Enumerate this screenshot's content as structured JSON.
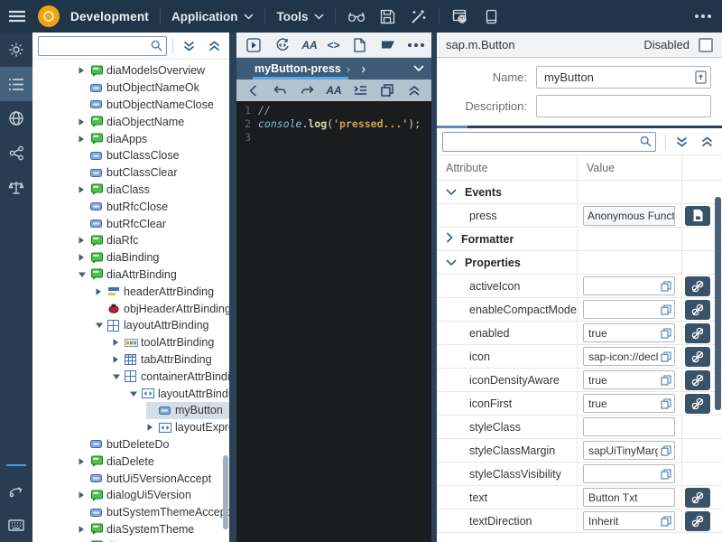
{
  "topbar": {
    "product_label": "Development",
    "menus": [
      {
        "label": "Application"
      },
      {
        "label": "Tools"
      }
    ]
  },
  "sidebar": {
    "items": [
      "settings",
      "objects-list",
      "globe",
      "share",
      "rules"
    ],
    "active_item": "objects-list",
    "bottom_items": [
      "gesture",
      "keyboard"
    ]
  },
  "tree": {
    "search_value": "",
    "items": [
      {
        "label": "diaModelsOverview",
        "level": 0,
        "expander": "closed",
        "icon": "dialog"
      },
      {
        "label": "butObjectNameOk",
        "level": 0,
        "expander": null,
        "icon": "button"
      },
      {
        "label": "butObjectNameClose",
        "level": 0,
        "expander": null,
        "icon": "button"
      },
      {
        "label": "diaObjectName",
        "level": 0,
        "expander": "closed",
        "icon": "dialog"
      },
      {
        "label": "diaApps",
        "level": 0,
        "expander": "closed",
        "icon": "dialog"
      },
      {
        "label": "butClassClose",
        "level": 0,
        "expander": null,
        "icon": "button"
      },
      {
        "label": "butClassClear",
        "level": 0,
        "expander": null,
        "icon": "button"
      },
      {
        "label": "diaClass",
        "level": 0,
        "expander": "closed",
        "icon": "dialog"
      },
      {
        "label": "butRfcClose",
        "level": 0,
        "expander": null,
        "icon": "button"
      },
      {
        "label": "butRfcClear",
        "level": 0,
        "expander": null,
        "icon": "button"
      },
      {
        "label": "diaRfc",
        "level": 0,
        "expander": "closed",
        "icon": "dialog"
      },
      {
        "label": "diaBinding",
        "level": 0,
        "expander": "closed",
        "icon": "dialog"
      },
      {
        "label": "diaAttrBinding",
        "level": 0,
        "expander": "open",
        "icon": "dialog"
      },
      {
        "label": "headerAttrBinding",
        "level": 1,
        "expander": "closed",
        "icon": "header"
      },
      {
        "label": "objHeaderAttrBinding",
        "level": 1,
        "expander": null,
        "icon": "object"
      },
      {
        "label": "layoutAttrBinding",
        "level": 1,
        "expander": "open",
        "icon": "layout"
      },
      {
        "label": "toolAttrBinding",
        "level": 2,
        "expander": "closed",
        "icon": "toolbar"
      },
      {
        "label": "tabAttrBinding",
        "level": 2,
        "expander": "closed",
        "icon": "table"
      },
      {
        "label": "containerAttrBinding",
        "level": 2,
        "expander": "open",
        "icon": "layout"
      },
      {
        "label": "layoutAttrBindingB",
        "level": 3,
        "expander": "open",
        "icon": "hlayout"
      },
      {
        "label": "myButton",
        "level": 4,
        "expander": null,
        "icon": "button",
        "selected": true
      },
      {
        "label": "layoutExpressionA",
        "level": 4,
        "expander": "closed",
        "icon": "hlayout"
      },
      {
        "label": "butDeleteDo",
        "level": 0,
        "expander": null,
        "icon": "button"
      },
      {
        "label": "diaDelete",
        "level": 0,
        "expander": "closed",
        "icon": "dialog"
      },
      {
        "label": "butUi5VersionAccept",
        "level": 0,
        "expander": null,
        "icon": "button"
      },
      {
        "label": "dialogUi5Version",
        "level": 0,
        "expander": "closed",
        "icon": "dialog"
      },
      {
        "label": "butSystemThemeAccept",
        "level": 0,
        "expander": null,
        "icon": "button"
      },
      {
        "label": "diaSystemTheme",
        "level": 0,
        "expander": "closed",
        "icon": "dialog"
      },
      {
        "label": "dia",
        "level": 0,
        "expander": "closed",
        "icon": "dialog"
      }
    ]
  },
  "editor": {
    "tab_label": "myButton-press",
    "lines": [
      {
        "n": "1",
        "tokens": [
          {
            "text": "//",
            "cls": "cmt"
          }
        ]
      },
      {
        "n": "2",
        "tokens": [
          {
            "text": "console",
            "cls": "obj"
          },
          {
            "text": ".",
            "cls": "pln"
          },
          {
            "text": "log",
            "cls": "fn"
          },
          {
            "text": "(",
            "cls": "pln"
          },
          {
            "text": "'pressed...'",
            "cls": "str"
          },
          {
            "text": ")",
            "cls": "pln"
          },
          {
            "text": ";",
            "cls": "pln"
          }
        ]
      },
      {
        "n": "3",
        "tokens": []
      }
    ]
  },
  "props": {
    "class_name": "sap.m.Button",
    "disabled_label": "Disabled",
    "disabled_checked": false,
    "name_label": "Name:",
    "name_value": "myButton",
    "description_label": "Description:",
    "description_value": "",
    "search_value": "",
    "col_attribute": "Attribute",
    "col_value": "Value",
    "rows": [
      {
        "type": "group",
        "label": "Events",
        "expanded": true
      },
      {
        "type": "attr",
        "label": "press",
        "control": "button",
        "value": "Anonymous Functi",
        "action": "script"
      },
      {
        "type": "group",
        "label": "Formatter",
        "expanded": false
      },
      {
        "type": "group",
        "label": "Properties",
        "expanded": true
      },
      {
        "type": "attr",
        "label": "activeIcon",
        "control": "input",
        "value": "",
        "copy": true,
        "unbind": true
      },
      {
        "type": "attr",
        "label": "enableCompactMode",
        "control": "input",
        "value": "",
        "copy": true,
        "unbind": true
      },
      {
        "type": "attr",
        "label": "enabled",
        "control": "input",
        "value": "true",
        "copy": true,
        "unbind": true
      },
      {
        "type": "attr",
        "label": "icon",
        "control": "input",
        "value": "sap-icon://decl",
        "copy": true,
        "unbind": true
      },
      {
        "type": "attr",
        "label": "iconDensityAware",
        "control": "input",
        "value": "true",
        "copy": true,
        "unbind": true
      },
      {
        "type": "attr",
        "label": "iconFirst",
        "control": "input",
        "value": "true",
        "copy": true,
        "unbind": true
      },
      {
        "type": "attr",
        "label": "styleClass",
        "control": "input",
        "value": "",
        "copy": false,
        "unbind": false
      },
      {
        "type": "attr",
        "label": "styleClassMargin",
        "control": "input",
        "value": "sapUiTinyMarg",
        "copy": true,
        "unbind": false
      },
      {
        "type": "attr",
        "label": "styleClassVisibility",
        "control": "input",
        "value": "",
        "copy": true,
        "unbind": false
      },
      {
        "type": "attr",
        "label": "text",
        "control": "input",
        "value": "Button Txt",
        "copy": false,
        "unbind": true
      },
      {
        "type": "attr",
        "label": "textDirection",
        "control": "input",
        "value": "Inherit",
        "copy": true,
        "unbind": true
      }
    ]
  },
  "colors": {
    "topbar_bg": "#20344a",
    "accent_blue": "#5aa7e8",
    "selection": "#d5dde5",
    "tree_icon_green": "#4cc14c",
    "tree_icon_blue": "#7fa8d9",
    "unbind_button_bg": "#3a5268",
    "code_bg": "#1a1c1d",
    "logo_orange": "#f2a30b"
  }
}
